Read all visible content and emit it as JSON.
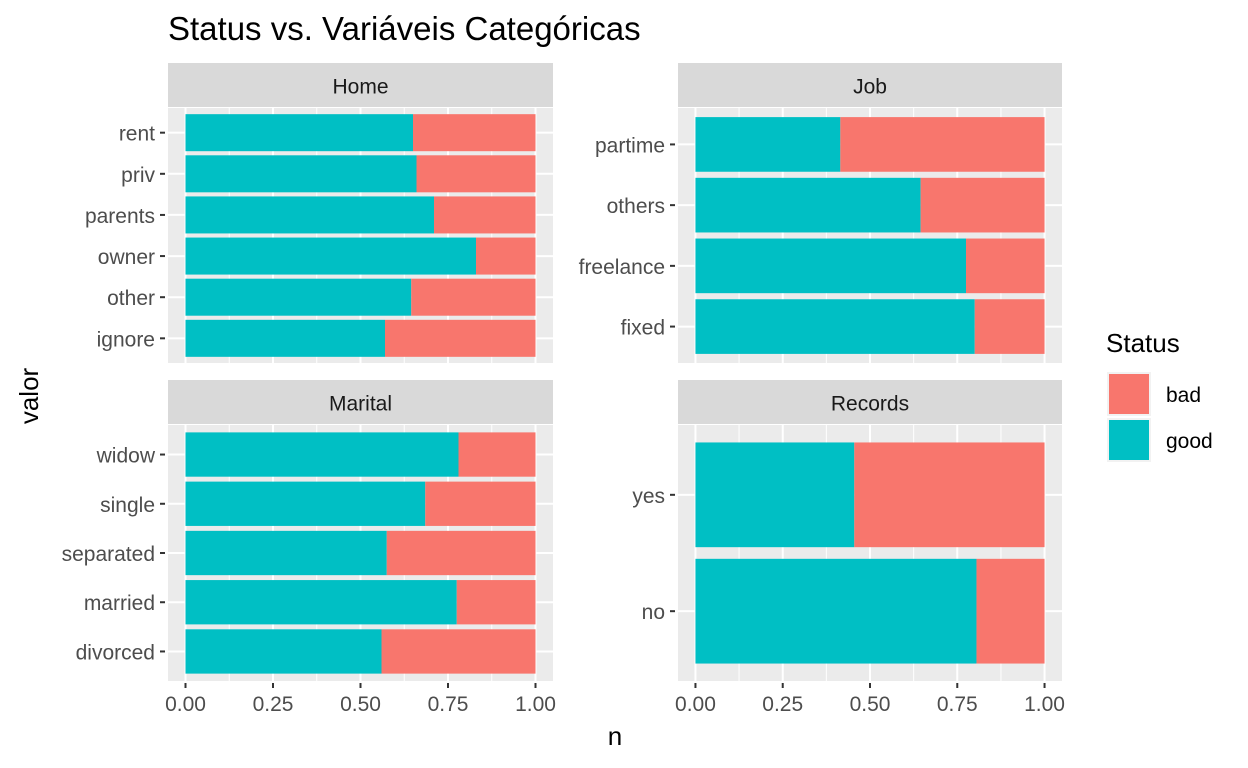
{
  "chart_data": {
    "type": "bar",
    "orientation": "horizontal",
    "stacked": true,
    "title": "Status vs. Variáveis Categóricas",
    "xlabel": "n",
    "ylabel": "valor",
    "xlim": [
      0,
      1
    ],
    "xticks": [
      "0.00",
      "0.25",
      "0.50",
      "0.75",
      "1.00"
    ],
    "grid": true,
    "legend": {
      "title": "Status",
      "position": "right",
      "entries": [
        {
          "name": "bad",
          "color": "#F8766D"
        },
        {
          "name": "good",
          "color": "#00BFC4"
        }
      ]
    },
    "colors": {
      "bad": "#F8766D",
      "good": "#00BFC4",
      "panel_bg": "#EBEBEB",
      "strip_bg": "#D9D9D9",
      "grid": "#FFFFFF"
    },
    "panels": [
      {
        "name": "Home",
        "categories": [
          "rent",
          "priv",
          "parents",
          "owner",
          "other",
          "ignore"
        ],
        "series": [
          {
            "name": "good",
            "values": [
              0.65,
              0.66,
              0.71,
              0.83,
              0.645,
              0.57
            ]
          },
          {
            "name": "bad",
            "values": [
              0.35,
              0.34,
              0.29,
              0.17,
              0.355,
              0.43
            ]
          }
        ]
      },
      {
        "name": "Job",
        "categories": [
          "partime",
          "others",
          "freelance",
          "fixed"
        ],
        "series": [
          {
            "name": "good",
            "values": [
              0.415,
              0.645,
              0.775,
              0.8
            ]
          },
          {
            "name": "bad",
            "values": [
              0.585,
              0.355,
              0.225,
              0.2
            ]
          }
        ]
      },
      {
        "name": "Marital",
        "categories": [
          "widow",
          "single",
          "separated",
          "married",
          "divorced"
        ],
        "series": [
          {
            "name": "good",
            "values": [
              0.78,
              0.685,
              0.575,
              0.775,
              0.56
            ]
          },
          {
            "name": "bad",
            "values": [
              0.22,
              0.315,
              0.425,
              0.225,
              0.44
            ]
          }
        ]
      },
      {
        "name": "Records",
        "categories": [
          "yes",
          "no"
        ],
        "series": [
          {
            "name": "good",
            "values": [
              0.455,
              0.805
            ]
          },
          {
            "name": "bad",
            "values": [
              0.545,
              0.195
            ]
          }
        ]
      }
    ]
  }
}
